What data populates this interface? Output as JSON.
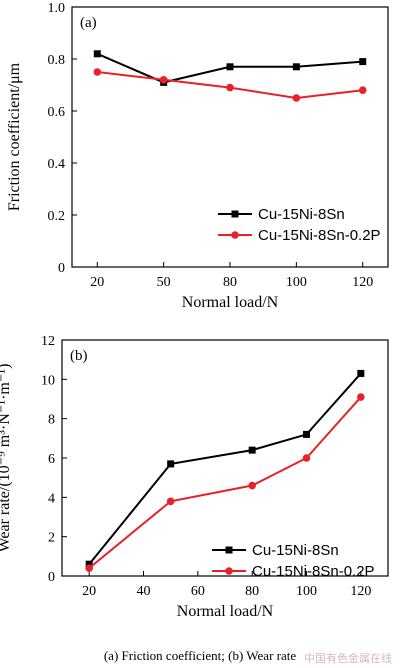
{
  "colors": {
    "series1": "#000000",
    "series2": "#e8202a",
    "axis": "#000000"
  },
  "caption": "(a) Friction coefficient; (b) Wear rate",
  "watermark": "中国有色金属在线",
  "chart_data": [
    {
      "type": "line",
      "panel_label": "(a)",
      "x": [
        20,
        50,
        80,
        100,
        120
      ],
      "x_tick_labels": [
        "20",
        "50",
        "80",
        "100",
        "120"
      ],
      "categorical_x": true,
      "xlabel": "Normal load/N",
      "ylabel": "Friction coefficient/μm",
      "ylim": [
        0,
        1.0
      ],
      "y_ticks": [
        0,
        0.2,
        0.4,
        0.6,
        0.8,
        1.0
      ],
      "y_tick_labels": [
        "0",
        "0.2",
        "0.4",
        "0.6",
        "0.8",
        "1.0"
      ],
      "legend_position": "lower-right",
      "series": [
        {
          "name": "Cu-15Ni-8Sn",
          "marker": "square",
          "values": [
            0.82,
            0.71,
            0.77,
            0.77,
            0.79
          ]
        },
        {
          "name": "Cu-15Ni-8Sn-0.2P",
          "marker": "circle",
          "values": [
            0.75,
            0.72,
            0.69,
            0.65,
            0.68
          ]
        }
      ]
    },
    {
      "type": "line",
      "panel_label": "(b)",
      "x": [
        20,
        50,
        80,
        100,
        120
      ],
      "xlim": [
        10,
        130
      ],
      "x_ticks": [
        20,
        40,
        60,
        80,
        100,
        120
      ],
      "x_tick_labels": [
        "20",
        "40",
        "60",
        "80",
        "100",
        "120"
      ],
      "xlabel": "Normal load/N",
      "ylabel": "Wear rate/(10⁻⁹ m³·N⁻¹·m⁻¹)",
      "ylim": [
        0,
        12
      ],
      "y_ticks": [
        0,
        2,
        4,
        6,
        8,
        10,
        12
      ],
      "y_tick_labels": [
        "0",
        "2",
        "4",
        "6",
        "8",
        "10",
        "12"
      ],
      "legend_position": "lower-right",
      "series": [
        {
          "name": "Cu-15Ni-8Sn",
          "marker": "square",
          "values": [
            0.6,
            5.7,
            6.4,
            7.2,
            10.3
          ]
        },
        {
          "name": "Cu-15Ni-8Sn-0.2P",
          "marker": "circle",
          "values": [
            0.4,
            3.8,
            4.6,
            6.0,
            9.1
          ]
        }
      ]
    }
  ]
}
